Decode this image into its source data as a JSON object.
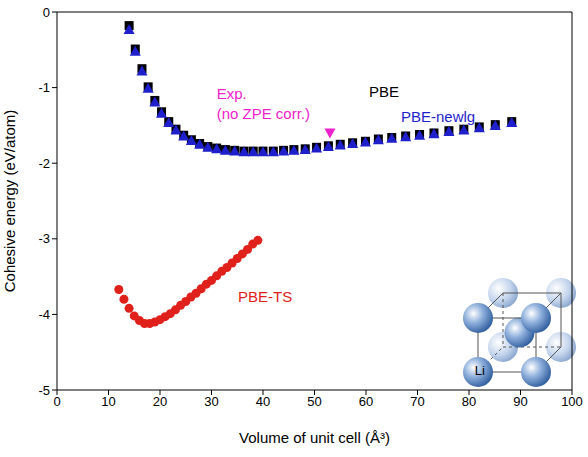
{
  "chart_data": {
    "type": "scatter",
    "x_label": "Volume of unit cell (Å³)",
    "y_label": "Cohesive energy (eV/atom)",
    "xlim": [
      0,
      100
    ],
    "ylim": [
      -5,
      0
    ],
    "xticks": [
      0,
      10,
      20,
      30,
      40,
      50,
      60,
      70,
      80,
      90,
      100
    ],
    "yticks": [
      -5,
      -4,
      -3,
      -2,
      -1,
      0
    ],
    "grid": false,
    "series": [
      {
        "name": "PBE",
        "color": "#000000",
        "marker": "square",
        "x": [
          14,
          15.2,
          16.5,
          17.7,
          19,
          20.3,
          21.7,
          23.1,
          24.6,
          26.1,
          27.7,
          29.3,
          31,
          32.7,
          34.5,
          36.3,
          38.1,
          40,
          42,
          44,
          46,
          48.2,
          50.4,
          52.7,
          55,
          57.4,
          59.9,
          62.4,
          65,
          67.7,
          70.4,
          73.2,
          76.1,
          79,
          82,
          85.1,
          88.3
        ],
        "values": [
          -0.18,
          -0.49,
          -0.75,
          -0.99,
          -1.17,
          -1.32,
          -1.45,
          -1.55,
          -1.63,
          -1.69,
          -1.74,
          -1.78,
          -1.8,
          -1.82,
          -1.83,
          -1.84,
          -1.84,
          -1.84,
          -1.84,
          -1.83,
          -1.82,
          -1.81,
          -1.79,
          -1.77,
          -1.75,
          -1.73,
          -1.71,
          -1.68,
          -1.66,
          -1.64,
          -1.62,
          -1.6,
          -1.57,
          -1.55,
          -1.52,
          -1.49,
          -1.45
        ],
        "label_x": 63.5,
        "label_y": -1.07
      },
      {
        "name": "PBE-newlg",
        "color": "#1f1fcc",
        "marker": "triangle",
        "x": [
          14,
          15.2,
          16.5,
          17.7,
          19,
          20.3,
          21.7,
          23.1,
          24.6,
          26.1,
          27.7,
          29.3,
          31,
          32.7,
          34.5,
          36.3,
          38.1,
          40,
          42,
          44,
          46,
          48.2,
          50.4,
          52.7,
          55,
          57.4,
          59.9,
          62.4,
          65,
          67.7,
          70.4,
          73.2,
          76.1,
          79,
          82,
          85.1,
          88.3
        ],
        "values": [
          -0.23,
          -0.52,
          -0.78,
          -1.01,
          -1.19,
          -1.34,
          -1.46,
          -1.56,
          -1.64,
          -1.7,
          -1.75,
          -1.79,
          -1.81,
          -1.83,
          -1.84,
          -1.85,
          -1.85,
          -1.85,
          -1.85,
          -1.84,
          -1.83,
          -1.82,
          -1.8,
          -1.78,
          -1.76,
          -1.74,
          -1.72,
          -1.69,
          -1.67,
          -1.65,
          -1.63,
          -1.61,
          -1.58,
          -1.56,
          -1.53,
          -1.5,
          -1.46
        ],
        "label_x": 74,
        "label_y": -1.4
      },
      {
        "name": "PBE-TS",
        "color": "#e0201a",
        "marker": "circle",
        "x": [
          12,
          13,
          14,
          15,
          16,
          17,
          18,
          19,
          20,
          21,
          22,
          23,
          24,
          25,
          26,
          27,
          28,
          29,
          30,
          31,
          32,
          33,
          34,
          35,
          36,
          37,
          38,
          39
        ],
        "values": [
          -3.67,
          -3.8,
          -3.92,
          -4.02,
          -4.08,
          -4.12,
          -4.12,
          -4.1,
          -4.07,
          -4.03,
          -3.99,
          -3.94,
          -3.88,
          -3.83,
          -3.77,
          -3.72,
          -3.66,
          -3.6,
          -3.55,
          -3.49,
          -3.43,
          -3.38,
          -3.32,
          -3.26,
          -3.2,
          -3.14,
          -3.07,
          -3.02
        ],
        "label_x": 40.4,
        "label_y": -3.78
      }
    ],
    "experiment": {
      "x": 53,
      "y": -1.6,
      "color": "#ee22cc",
      "marker": "triangle-down",
      "label": [
        "Exp.",
        "(no ZPE corr.)"
      ],
      "label_x": 31,
      "label_y": [
        -1.1,
        -1.36
      ]
    },
    "inset": {
      "label": "Li",
      "label_x": 82.1,
      "label_y": -4.76
    }
  }
}
